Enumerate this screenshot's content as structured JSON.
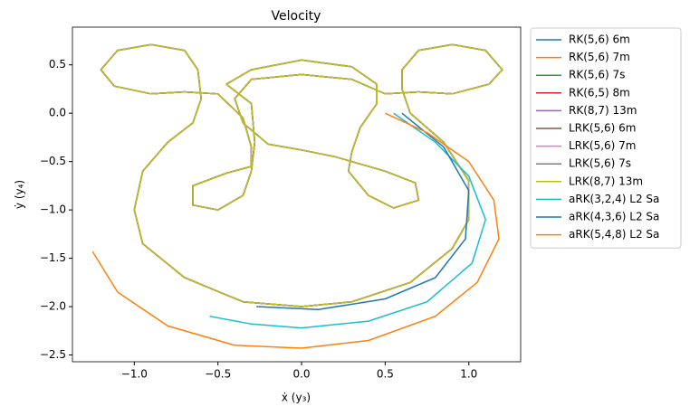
{
  "chart_data": {
    "type": "line",
    "title": "Velocity",
    "x_label": "ẋ (y₃)",
    "y_label": "ẏ (y₄)",
    "xlim": [
      -1.37,
      1.31
    ],
    "ylim": [
      -2.57,
      0.89
    ],
    "xticks": [
      {
        "value": -1.0,
        "label": "−1.0"
      },
      {
        "value": -0.5,
        "label": "−0.5"
      },
      {
        "value": 0,
        "label": "0.0"
      },
      0.5,
      {
        "value": 1.0,
        "label": "1.0"
      }
    ],
    "yticks": [
      0.5,
      {
        "value": 0,
        "label": "0.0"
      },
      {
        "value": -0.5,
        "label": "−0.5"
      },
      {
        "value": -1.0,
        "label": "−1.0"
      },
      {
        "value": -1.5,
        "label": "−1.5"
      },
      {
        "value": -2.0,
        "label": "−2.0"
      },
      {
        "value": -2.5,
        "label": "−2.5"
      }
    ],
    "grid": false,
    "legend": "outside right",
    "x": [
      -0.45,
      -0.3,
      0,
      0.3,
      0.45,
      0.45,
      0.35,
      0.3,
      0.28,
      0.4,
      0.55,
      0.7,
      0.68,
      0.5,
      0.2,
      0,
      -0.2,
      -0.35,
      -0.4,
      -0.3,
      0,
      0.3,
      0.5,
      0.7,
      0.9,
      1.12,
      1.2,
      1.1,
      0.9,
      0.7,
      0.6,
      0.6,
      0.65,
      0.85,
      1.0,
      1.0,
      0.9,
      0.65,
      0.3,
      0,
      -0.35,
      -0.7,
      -0.95,
      -1.0,
      -0.95,
      -0.8,
      -0.65,
      -0.6,
      -0.62,
      -0.7,
      -0.9,
      -1.1,
      -1.2,
      -1.12,
      -0.9,
      -0.7,
      -0.5,
      -0.35,
      -0.3,
      -0.3,
      -0.45,
      -0.65,
      -0.65,
      -0.5,
      -0.35,
      -0.3,
      -0.28,
      -0.3,
      -0.45
    ],
    "series": [
      {
        "name": "RK(5,6) 6m",
        "color": "#1f77b4",
        "values": [
          0.3,
          0.45,
          0.55,
          0.48,
          0.3,
          0.1,
          -0.15,
          -0.4,
          -0.6,
          -0.85,
          -0.98,
          -0.9,
          -0.72,
          -0.6,
          -0.45,
          -0.38,
          -0.32,
          -0.1,
          0.15,
          0.35,
          0.4,
          0.35,
          0.2,
          0.22,
          0.2,
          0.3,
          0.45,
          0.65,
          0.71,
          0.65,
          0.45,
          0.25,
          0.0,
          -0.3,
          -0.7,
          -1.1,
          -1.4,
          -1.75,
          -1.95,
          -2.0,
          -1.95,
          -1.7,
          -1.35,
          -1.0,
          -0.6,
          -0.3,
          -0.1,
          0.15,
          0.45,
          0.65,
          0.71,
          0.65,
          0.45,
          0.28,
          0.2,
          0.22,
          0.2,
          -0.05,
          -0.35,
          -0.55,
          -0.62,
          -0.75,
          -0.95,
          -1.0,
          -0.85,
          -0.6,
          -0.3,
          0.1,
          0.3
        ]
      },
      {
        "name": "RK(5,6) 7m",
        "color": "#ff7f0e",
        "values": [
          0.3,
          0.45,
          0.55,
          0.48,
          0.3,
          0.1,
          -0.15,
          -0.4,
          -0.6,
          -0.85,
          -0.98,
          -0.9,
          -0.72,
          -0.6,
          -0.45,
          -0.38,
          -0.32,
          -0.1,
          0.15,
          0.35,
          0.4,
          0.35,
          0.2,
          0.22,
          0.2,
          0.3,
          0.45,
          0.65,
          0.71,
          0.65,
          0.45,
          0.25,
          0.0,
          -0.3,
          -0.7,
          -1.1,
          -1.4,
          -1.75,
          -1.95,
          -2.0,
          -1.95,
          -1.7,
          -1.35,
          -1.0,
          -0.6,
          -0.3,
          -0.1,
          0.15,
          0.45,
          0.65,
          0.71,
          0.65,
          0.45,
          0.28,
          0.2,
          0.22,
          0.2,
          -0.05,
          -0.35,
          -0.55,
          -0.62,
          -0.75,
          -0.95,
          -1.0,
          -0.85,
          -0.6,
          -0.3,
          0.1,
          0.3
        ]
      },
      {
        "name": "RK(5,6) 7s",
        "color": "#2ca02c",
        "values": [
          0.3,
          0.45,
          0.55,
          0.48,
          0.3,
          0.1,
          -0.15,
          -0.4,
          -0.6,
          -0.85,
          -0.98,
          -0.9,
          -0.72,
          -0.6,
          -0.45,
          -0.38,
          -0.32,
          -0.1,
          0.15,
          0.35,
          0.4,
          0.35,
          0.2,
          0.22,
          0.2,
          0.3,
          0.45,
          0.65,
          0.71,
          0.65,
          0.45,
          0.25,
          0.0,
          -0.3,
          -0.7,
          -1.1,
          -1.4,
          -1.75,
          -1.95,
          -2.0,
          -1.95,
          -1.7,
          -1.35,
          -1.0,
          -0.6,
          -0.3,
          -0.1,
          0.15,
          0.45,
          0.65,
          0.71,
          0.65,
          0.45,
          0.28,
          0.2,
          0.22,
          0.2,
          -0.05,
          -0.35,
          -0.55,
          -0.62,
          -0.75,
          -0.95,
          -1.0,
          -0.85,
          -0.6,
          -0.3,
          0.1,
          0.3
        ]
      },
      {
        "name": "RK(6,5) 8m",
        "color": "#d62728",
        "values": [
          0.3,
          0.45,
          0.55,
          0.48,
          0.3,
          0.1,
          -0.15,
          -0.4,
          -0.6,
          -0.85,
          -0.98,
          -0.9,
          -0.72,
          -0.6,
          -0.45,
          -0.38,
          -0.32,
          -0.1,
          0.15,
          0.35,
          0.4,
          0.35,
          0.2,
          0.22,
          0.2,
          0.3,
          0.45,
          0.65,
          0.71,
          0.65,
          0.45,
          0.25,
          0.0,
          -0.3,
          -0.7,
          -1.1,
          -1.4,
          -1.75,
          -1.95,
          -2.0,
          -1.95,
          -1.7,
          -1.35,
          -1.0,
          -0.6,
          -0.3,
          -0.1,
          0.15,
          0.45,
          0.65,
          0.71,
          0.65,
          0.45,
          0.28,
          0.2,
          0.22,
          0.2,
          -0.05,
          -0.35,
          -0.55,
          -0.62,
          -0.75,
          -0.95,
          -1.0,
          -0.85,
          -0.6,
          -0.3,
          0.1,
          0.3
        ]
      },
      {
        "name": "RK(8,7) 13m",
        "color": "#9467bd",
        "values": [
          0.3,
          0.45,
          0.55,
          0.48,
          0.3,
          0.1,
          -0.15,
          -0.4,
          -0.6,
          -0.85,
          -0.98,
          -0.9,
          -0.72,
          -0.6,
          -0.45,
          -0.38,
          -0.32,
          -0.1,
          0.15,
          0.35,
          0.4,
          0.35,
          0.2,
          0.22,
          0.2,
          0.3,
          0.45,
          0.65,
          0.71,
          0.65,
          0.45,
          0.25,
          0.0,
          -0.3,
          -0.7,
          -1.1,
          -1.4,
          -1.75,
          -1.95,
          -2.0,
          -1.95,
          -1.7,
          -1.35,
          -1.0,
          -0.6,
          -0.3,
          -0.1,
          0.15,
          0.45,
          0.65,
          0.71,
          0.65,
          0.45,
          0.28,
          0.2,
          0.22,
          0.2,
          -0.05,
          -0.35,
          -0.55,
          -0.62,
          -0.75,
          -0.95,
          -1.0,
          -0.85,
          -0.6,
          -0.3,
          0.1,
          0.3
        ]
      },
      {
        "name": "LRK(5,6) 6m",
        "color": "#8c564b",
        "values": [
          0.3,
          0.45,
          0.55,
          0.48,
          0.3,
          0.1,
          -0.15,
          -0.4,
          -0.6,
          -0.85,
          -0.98,
          -0.9,
          -0.72,
          -0.6,
          -0.45,
          -0.38,
          -0.32,
          -0.1,
          0.15,
          0.35,
          0.4,
          0.35,
          0.2,
          0.22,
          0.2,
          0.3,
          0.45,
          0.65,
          0.71,
          0.65,
          0.45,
          0.25,
          0.0,
          -0.3,
          -0.7,
          -1.1,
          -1.4,
          -1.75,
          -1.95,
          -2.0,
          -1.95,
          -1.7,
          -1.35,
          -1.0,
          -0.6,
          -0.3,
          -0.1,
          0.15,
          0.45,
          0.65,
          0.71,
          0.65,
          0.45,
          0.28,
          0.2,
          0.22,
          0.2,
          -0.05,
          -0.35,
          -0.55,
          -0.62,
          -0.75,
          -0.95,
          -1.0,
          -0.85,
          -0.6,
          -0.3,
          0.1,
          0.3
        ]
      },
      {
        "name": "LRK(5,6) 7m",
        "color": "#e377c2",
        "values": [
          0.3,
          0.45,
          0.55,
          0.48,
          0.3,
          0.1,
          -0.15,
          -0.4,
          -0.6,
          -0.85,
          -0.98,
          -0.9,
          -0.72,
          -0.6,
          -0.45,
          -0.38,
          -0.32,
          -0.1,
          0.15,
          0.35,
          0.4,
          0.35,
          0.2,
          0.22,
          0.2,
          0.3,
          0.45,
          0.65,
          0.71,
          0.65,
          0.45,
          0.25,
          0.0,
          -0.3,
          -0.7,
          -1.1,
          -1.4,
          -1.75,
          -1.95,
          -2.0,
          -1.95,
          -1.7,
          -1.35,
          -1.0,
          -0.6,
          -0.3,
          -0.1,
          0.15,
          0.45,
          0.65,
          0.71,
          0.65,
          0.45,
          0.28,
          0.2,
          0.22,
          0.2,
          -0.05,
          -0.35,
          -0.55,
          -0.62,
          -0.75,
          -0.95,
          -1.0,
          -0.85,
          -0.6,
          -0.3,
          0.1,
          0.3
        ]
      },
      {
        "name": "LRK(5,6) 7s",
        "color": "#7f7f7f",
        "values": [
          0.3,
          0.45,
          0.55,
          0.48,
          0.3,
          0.1,
          -0.15,
          -0.4,
          -0.6,
          -0.85,
          -0.98,
          -0.9,
          -0.72,
          -0.6,
          -0.45,
          -0.38,
          -0.32,
          -0.1,
          0.15,
          0.35,
          0.4,
          0.35,
          0.2,
          0.22,
          0.2,
          0.3,
          0.45,
          0.65,
          0.71,
          0.65,
          0.45,
          0.25,
          0.0,
          -0.3,
          -0.7,
          -1.1,
          -1.4,
          -1.75,
          -1.95,
          -2.0,
          -1.95,
          -1.7,
          -1.35,
          -1.0,
          -0.6,
          -0.3,
          -0.1,
          0.15,
          0.45,
          0.65,
          0.71,
          0.65,
          0.45,
          0.28,
          0.2,
          0.22,
          0.2,
          -0.05,
          -0.35,
          -0.55,
          -0.62,
          -0.75,
          -0.95,
          -1.0,
          -0.85,
          -0.6,
          -0.3,
          0.1,
          0.3
        ]
      },
      {
        "name": "LRK(8,7) 13m",
        "color": "#bcbd22",
        "values": [
          0.3,
          0.45,
          0.55,
          0.48,
          0.3,
          0.1,
          -0.15,
          -0.4,
          -0.6,
          -0.85,
          -0.98,
          -0.9,
          -0.72,
          -0.6,
          -0.45,
          -0.38,
          -0.32,
          -0.1,
          0.15,
          0.35,
          0.4,
          0.35,
          0.2,
          0.22,
          0.2,
          0.3,
          0.45,
          0.65,
          0.71,
          0.65,
          0.45,
          0.25,
          0.0,
          -0.3,
          -0.7,
          -1.1,
          -1.4,
          -1.75,
          -1.95,
          -2.0,
          -1.95,
          -1.7,
          -1.35,
          -1.0,
          -0.6,
          -0.3,
          -0.1,
          0.15,
          0.45,
          0.65,
          0.71,
          0.65,
          0.45,
          0.28,
          0.2,
          0.22,
          0.2,
          -0.05,
          -0.35,
          -0.55,
          -0.62,
          -0.75,
          -0.95,
          -1.0,
          -0.85,
          -0.6,
          -0.3,
          0.1,
          0.3
        ]
      },
      {
        "name": "aRK(3,2,4) L2 Sa",
        "color": "#17becf",
        "x": [
          0.55,
          0.8,
          1.0,
          1.1,
          1.02,
          0.75,
          0.4,
          0,
          -0.3,
          -0.55
        ],
        "values": [
          0.0,
          -0.3,
          -0.65,
          -1.1,
          -1.55,
          -1.95,
          -2.15,
          -2.22,
          -2.18,
          -2.1
        ]
      },
      {
        "name": "aRK(4,3,6) L2 Sa",
        "color": "#1f77b4",
        "x": [
          0.6,
          0.85,
          1.0,
          0.98,
          0.8,
          0.5,
          0.1,
          -0.27
        ],
        "values": [
          0.0,
          -0.35,
          -0.8,
          -1.3,
          -1.7,
          -1.92,
          -2.03,
          -2.0
        ]
      },
      {
        "name": "aRK(5,4,8) L2 Sa",
        "color": "#ff7f0e",
        "x": [
          0.5,
          0.75,
          1.0,
          1.15,
          1.18,
          1.05,
          0.8,
          0.4,
          0,
          -0.4,
          -0.8,
          -1.1,
          -1.25
        ],
        "values": [
          0.0,
          -0.2,
          -0.5,
          -0.9,
          -1.3,
          -1.75,
          -2.1,
          -2.35,
          -2.43,
          -2.4,
          -2.2,
          -1.85,
          -1.43
        ]
      }
    ]
  }
}
